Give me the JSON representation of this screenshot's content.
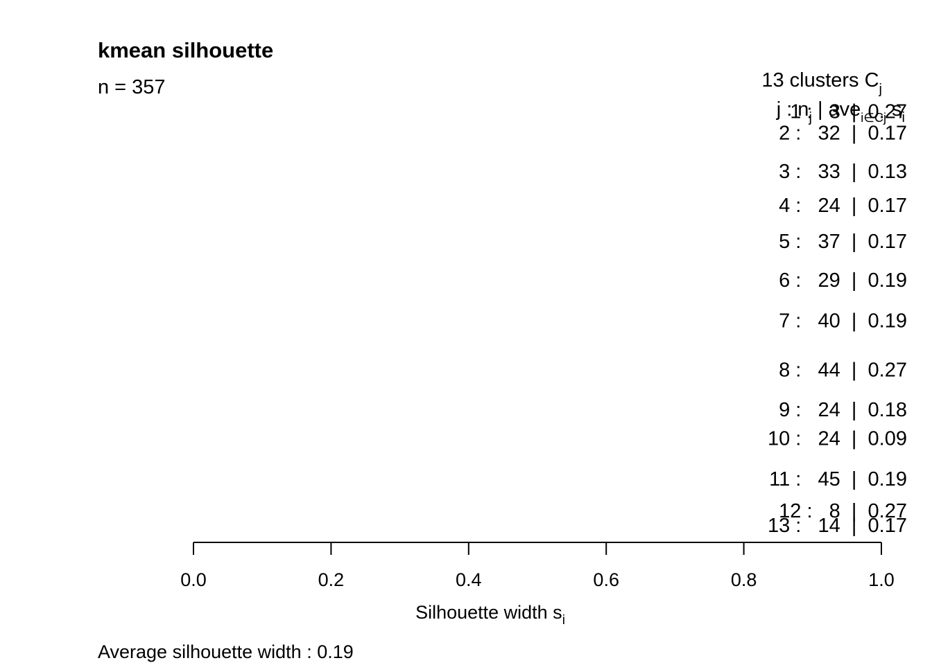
{
  "chart_data": {
    "type": "bar",
    "title": "kmean silhouette",
    "subtitle": "n = 357",
    "xlabel": "Silhouette width s",
    "xlabel_subscript": "i",
    "xlim": [
      0,
      1
    ],
    "x_ticks": [
      0.0,
      0.2,
      0.4,
      0.6,
      0.8,
      1.0
    ],
    "x_tick_labels": [
      "0.0",
      "0.2",
      "0.4",
      "0.6",
      "0.8",
      "1.0"
    ],
    "legend_header": {
      "count_text": "13  clusters  C",
      "count_subscript": "j",
      "columns_text": "j :  n",
      "columns_n_subscript": "j",
      "columns_ave_text": " | ave",
      "columns_ave_subscript": "i∈Cj",
      "columns_s_text": "  s",
      "columns_s_subscript": "i"
    },
    "clusters": [
      {
        "j": "1",
        "n": "3",
        "ave": "0.27"
      },
      {
        "j": "2",
        "n": "32",
        "ave": "0.17"
      },
      {
        "j": "3",
        "n": "33",
        "ave": "0.13"
      },
      {
        "j": "4",
        "n": "24",
        "ave": "0.17"
      },
      {
        "j": "5",
        "n": "37",
        "ave": "0.17"
      },
      {
        "j": "6",
        "n": "29",
        "ave": "0.19"
      },
      {
        "j": "7",
        "n": "40",
        "ave": "0.19"
      },
      {
        "j": "8",
        "n": "44",
        "ave": "0.27"
      },
      {
        "j": "9",
        "n": "24",
        "ave": "0.18"
      },
      {
        "j": "10",
        "n": "24",
        "ave": "0.09"
      },
      {
        "j": "11",
        "n": "45",
        "ave": "0.19"
      },
      {
        "j": "12",
        "n": "8",
        "ave": "0.27"
      },
      {
        "j": "13",
        "n": "14",
        "ave": "0.17"
      }
    ],
    "footer": "Average silhouette width :  0.19"
  }
}
